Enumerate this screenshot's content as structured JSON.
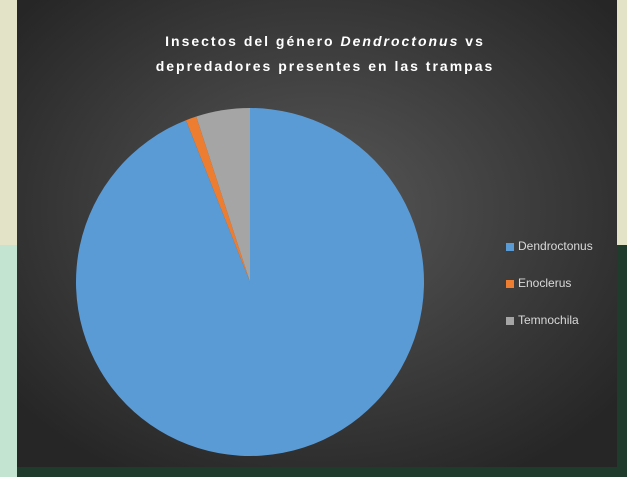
{
  "chart_data": {
    "type": "pie",
    "title": [
      [
        "Insectos del género ",
        "Dendroctonus",
        " vs"
      ],
      [
        "depredadores presentes en las trampas"
      ]
    ],
    "title_italic": [
      [
        false,
        true,
        false
      ],
      [
        false
      ]
    ],
    "categories": [
      "Dendroctonus",
      "Enoclerus",
      "Temnochila"
    ],
    "values": [
      94,
      1,
      5
    ],
    "colors": [
      "#5b9bd5",
      "#ed7d31",
      "#a5a5a5"
    ],
    "legend": "right"
  }
}
